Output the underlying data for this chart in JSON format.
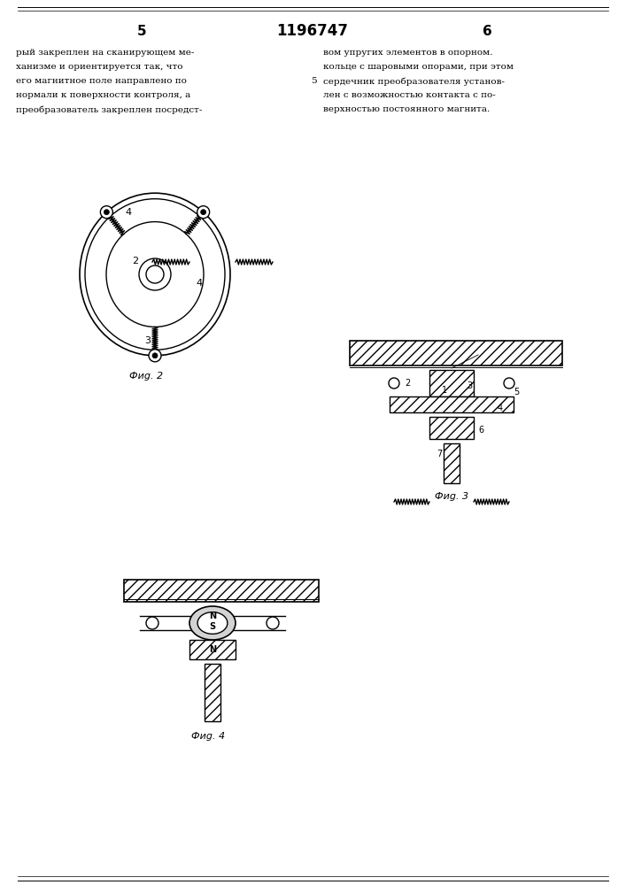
{
  "page_number_left": "5",
  "page_number_center": "1196747",
  "page_number_right": "6",
  "text_left": [
    "рый закреплен на сканирующем ме-",
    "ханизме и ориентируется так, что",
    "его магнитное поле направлено по",
    "нормали к поверхности контроля, а",
    "преобразователь закреплен посредст-"
  ],
  "text_right": [
    "вом упругих элементов в опорном.",
    "кольце с шаровыми опорами, при этом",
    "сердечник преобразователя установ-",
    "лен с возможностью контакта с по-",
    "верхностью постоянного магнита."
  ],
  "fig2_caption": "Фиg. 2",
  "fig3_caption": "Фиg. 3",
  "fig4_caption": "Фиg. 4",
  "bg_color": "#ffffff",
  "line_color": "#000000",
  "hatch_color": "#000000"
}
